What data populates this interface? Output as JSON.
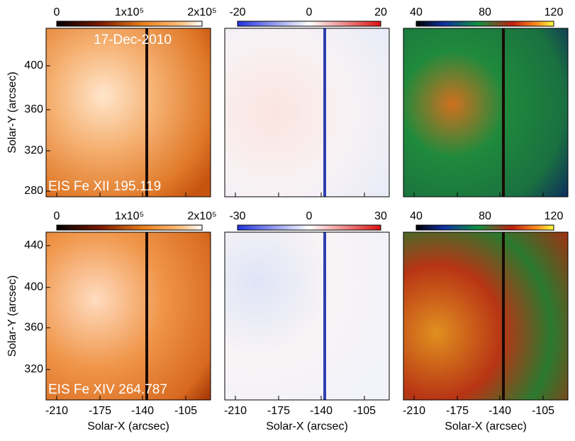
{
  "figure": {
    "x_axis": {
      "label": "Solar-X (arcsec)",
      "ticks": [
        "-210",
        "-175",
        "-140",
        "-105"
      ]
    },
    "rows": [
      {
        "y_label": "Solar-Y (arcsec)",
        "y_ticks": [
          "280",
          "320",
          "360",
          "400"
        ],
        "colorbars": [
          {
            "ticks": [
              "0",
              "1x10⁵",
              "2x10⁵"
            ]
          },
          {
            "ticks": [
              "-20",
              "0",
              "20"
            ]
          },
          {
            "ticks": [
              "40",
              "80",
              "120"
            ]
          }
        ],
        "date": "17-Dec-2010",
        "line": "EIS Fe XII 195.119"
      },
      {
        "y_label": "Solar-Y (arcsec)",
        "y_ticks": [
          "320",
          "360",
          "400",
          "440"
        ],
        "colorbars": [
          {
            "ticks": [
              "0",
              "1x10⁵",
              "2x10⁵"
            ]
          },
          {
            "ticks": [
              "-30",
              "0",
              "30"
            ]
          },
          {
            "ticks": [
              "40",
              "80",
              "120"
            ]
          }
        ],
        "line": "EIS Fe XIV 264.787"
      }
    ]
  }
}
